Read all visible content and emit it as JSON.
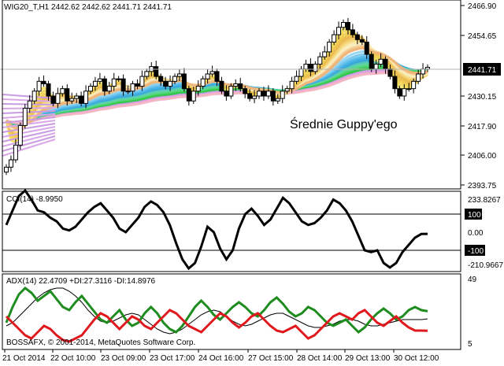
{
  "main": {
    "header": "WIG20_T,H1  2442.62 2442.62 2441.71 2441.71",
    "annotation": "Średnie Guppy'ego",
    "current_price": "2441.71",
    "yticks": [
      "2466.90",
      "2454.65",
      "2430.15",
      "2417.90",
      "2406.00",
      "2393.75"
    ]
  },
  "cci": {
    "header": "CCI(14) -8.9950",
    "yticks": [
      "233.8267",
      "100",
      "0.00",
      "-100",
      "-210.9667"
    ]
  },
  "adx": {
    "header": "ADX(14) 22.4709 +DI:27.3116 -DI:14.8976",
    "footer": "BOSSAFX, © 2001-2014, MetaQuotes Software Corp.",
    "yticks": [
      "49",
      "5"
    ]
  },
  "xticks": [
    "21 Oct 2014",
    "22 Oct 10:00",
    "23 Oct 09:00",
    "23 Oct 17:00",
    "24 Oct 16:00",
    "27 Oct 15:00",
    "28 Oct 14:00",
    "29 Oct 13:00",
    "30 Oct 12:00"
  ],
  "colors": {
    "bull": "#ffffff",
    "bear": "#000000",
    "plus_di": "#1e8c1e",
    "minus_di": "#e0191e",
    "adx": "#000000",
    "cci": "#000000"
  },
  "chart_data": [
    {
      "type": "candlestick",
      "title": "WIG20_T,H1",
      "ylim": [
        2393.75,
        2466.9
      ],
      "closes": [
        2401,
        2404,
        2410,
        2418,
        2425,
        2428,
        2432,
        2436,
        2435,
        2430,
        2427,
        2431,
        2433,
        2428,
        2429,
        2430,
        2427,
        2432,
        2434,
        2436,
        2437,
        2432,
        2434,
        2437,
        2437,
        2432,
        2432,
        2435,
        2434,
        2438,
        2440,
        2442,
        2438,
        2436,
        2434,
        2436,
        2438,
        2439,
        2433,
        2428,
        2432,
        2434,
        2437,
        2439,
        2440,
        2436,
        2432,
        2430,
        2434,
        2435,
        2433,
        2431,
        2429,
        2430,
        2432,
        2430,
        2432,
        2428,
        2429,
        2432,
        2433,
        2436,
        2438,
        2441,
        2443,
        2440,
        2443,
        2446,
        2448,
        2452,
        2455,
        2458,
        2460,
        2457,
        2455,
        2453,
        2452,
        2447,
        2441,
        2443,
        2445,
        2441,
        2438,
        2433,
        2430,
        2433,
        2433,
        2436,
        2439,
        2441,
        2441.71
      ]
    },
    {
      "type": "line",
      "title": "CCI(14)",
      "ylim": [
        -210.9667,
        233.8267
      ],
      "values": [
        40,
        120,
        200,
        230,
        180,
        120,
        110,
        80,
        60,
        20,
        10,
        30,
        70,
        110,
        140,
        160,
        120,
        80,
        20,
        0,
        40,
        80,
        140,
        170,
        150,
        110,
        40,
        -60,
        -150,
        -200,
        -170,
        -80,
        30,
        0,
        -90,
        -150,
        -100,
        20,
        100,
        130,
        90,
        40,
        70,
        130,
        190,
        160,
        110,
        60,
        40,
        50,
        80,
        120,
        180,
        160,
        120,
        60,
        -20,
        -100,
        -110,
        -100,
        -170,
        -195,
        -170,
        -110,
        -70,
        -30,
        -10,
        -9
      ]
    },
    {
      "type": "line",
      "title": "ADX(14)",
      "ylim": [
        5,
        49
      ],
      "x": [
        0,
        1,
        2,
        3,
        4,
        5,
        6,
        7,
        8,
        9,
        10,
        11,
        12,
        13,
        14,
        15,
        16,
        17,
        18,
        19,
        20,
        21,
        22,
        23,
        24,
        25,
        26,
        27,
        28,
        29,
        30,
        31,
        32,
        33,
        34,
        35,
        36,
        37,
        38,
        39,
        40,
        41,
        42,
        43,
        44,
        45,
        46,
        47,
        48,
        49,
        50,
        51,
        52,
        53,
        54,
        55,
        56,
        57,
        58,
        59,
        60,
        61,
        62,
        63,
        64,
        65,
        66,
        67
      ],
      "series": [
        {
          "name": "ADX",
          "values": [
            18,
            20,
            24,
            28,
            32,
            36,
            39,
            41,
            42,
            42,
            40,
            37,
            33,
            28,
            24,
            21,
            20,
            21,
            23,
            25,
            26,
            25,
            22,
            19,
            16,
            14,
            13,
            14,
            16,
            19,
            22,
            25,
            27,
            28,
            27,
            24,
            21,
            19,
            18,
            19,
            21,
            23,
            25,
            26,
            26,
            24,
            22,
            20,
            18,
            17,
            17,
            18,
            19,
            21,
            22,
            22,
            21,
            19,
            18,
            18,
            19,
            20,
            21,
            22,
            22,
            22,
            22,
            22.47
          ]
        },
        {
          "name": "+DI",
          "values": [
            20,
            30,
            38,
            42,
            39,
            34,
            37,
            40,
            35,
            30,
            28,
            33,
            37,
            32,
            27,
            22,
            20,
            24,
            28,
            22,
            18,
            20,
            26,
            30,
            26,
            20,
            16,
            14,
            18,
            24,
            30,
            34,
            30,
            25,
            22,
            26,
            30,
            33,
            30,
            26,
            24,
            28,
            33,
            36,
            32,
            27,
            24,
            26,
            30,
            28,
            24,
            20,
            18,
            20,
            22,
            18,
            14,
            17,
            22,
            26,
            29,
            26,
            22,
            24,
            28,
            30,
            28,
            27.31
          ]
        },
        {
          "name": "-DI",
          "values": [
            24,
            20,
            16,
            12,
            10,
            14,
            18,
            16,
            12,
            9,
            8,
            10,
            12,
            17,
            22,
            26,
            24,
            20,
            16,
            20,
            24,
            22,
            18,
            16,
            20,
            24,
            28,
            26,
            22,
            18,
            16,
            14,
            18,
            22,
            26,
            24,
            20,
            17,
            20,
            24,
            26,
            22,
            18,
            15,
            14,
            16,
            18,
            14,
            10,
            12,
            16,
            20,
            24,
            26,
            24,
            22,
            26,
            28,
            24,
            20,
            18,
            21,
            24,
            20,
            17,
            15,
            15,
            14.9
          ]
        }
      ]
    }
  ]
}
